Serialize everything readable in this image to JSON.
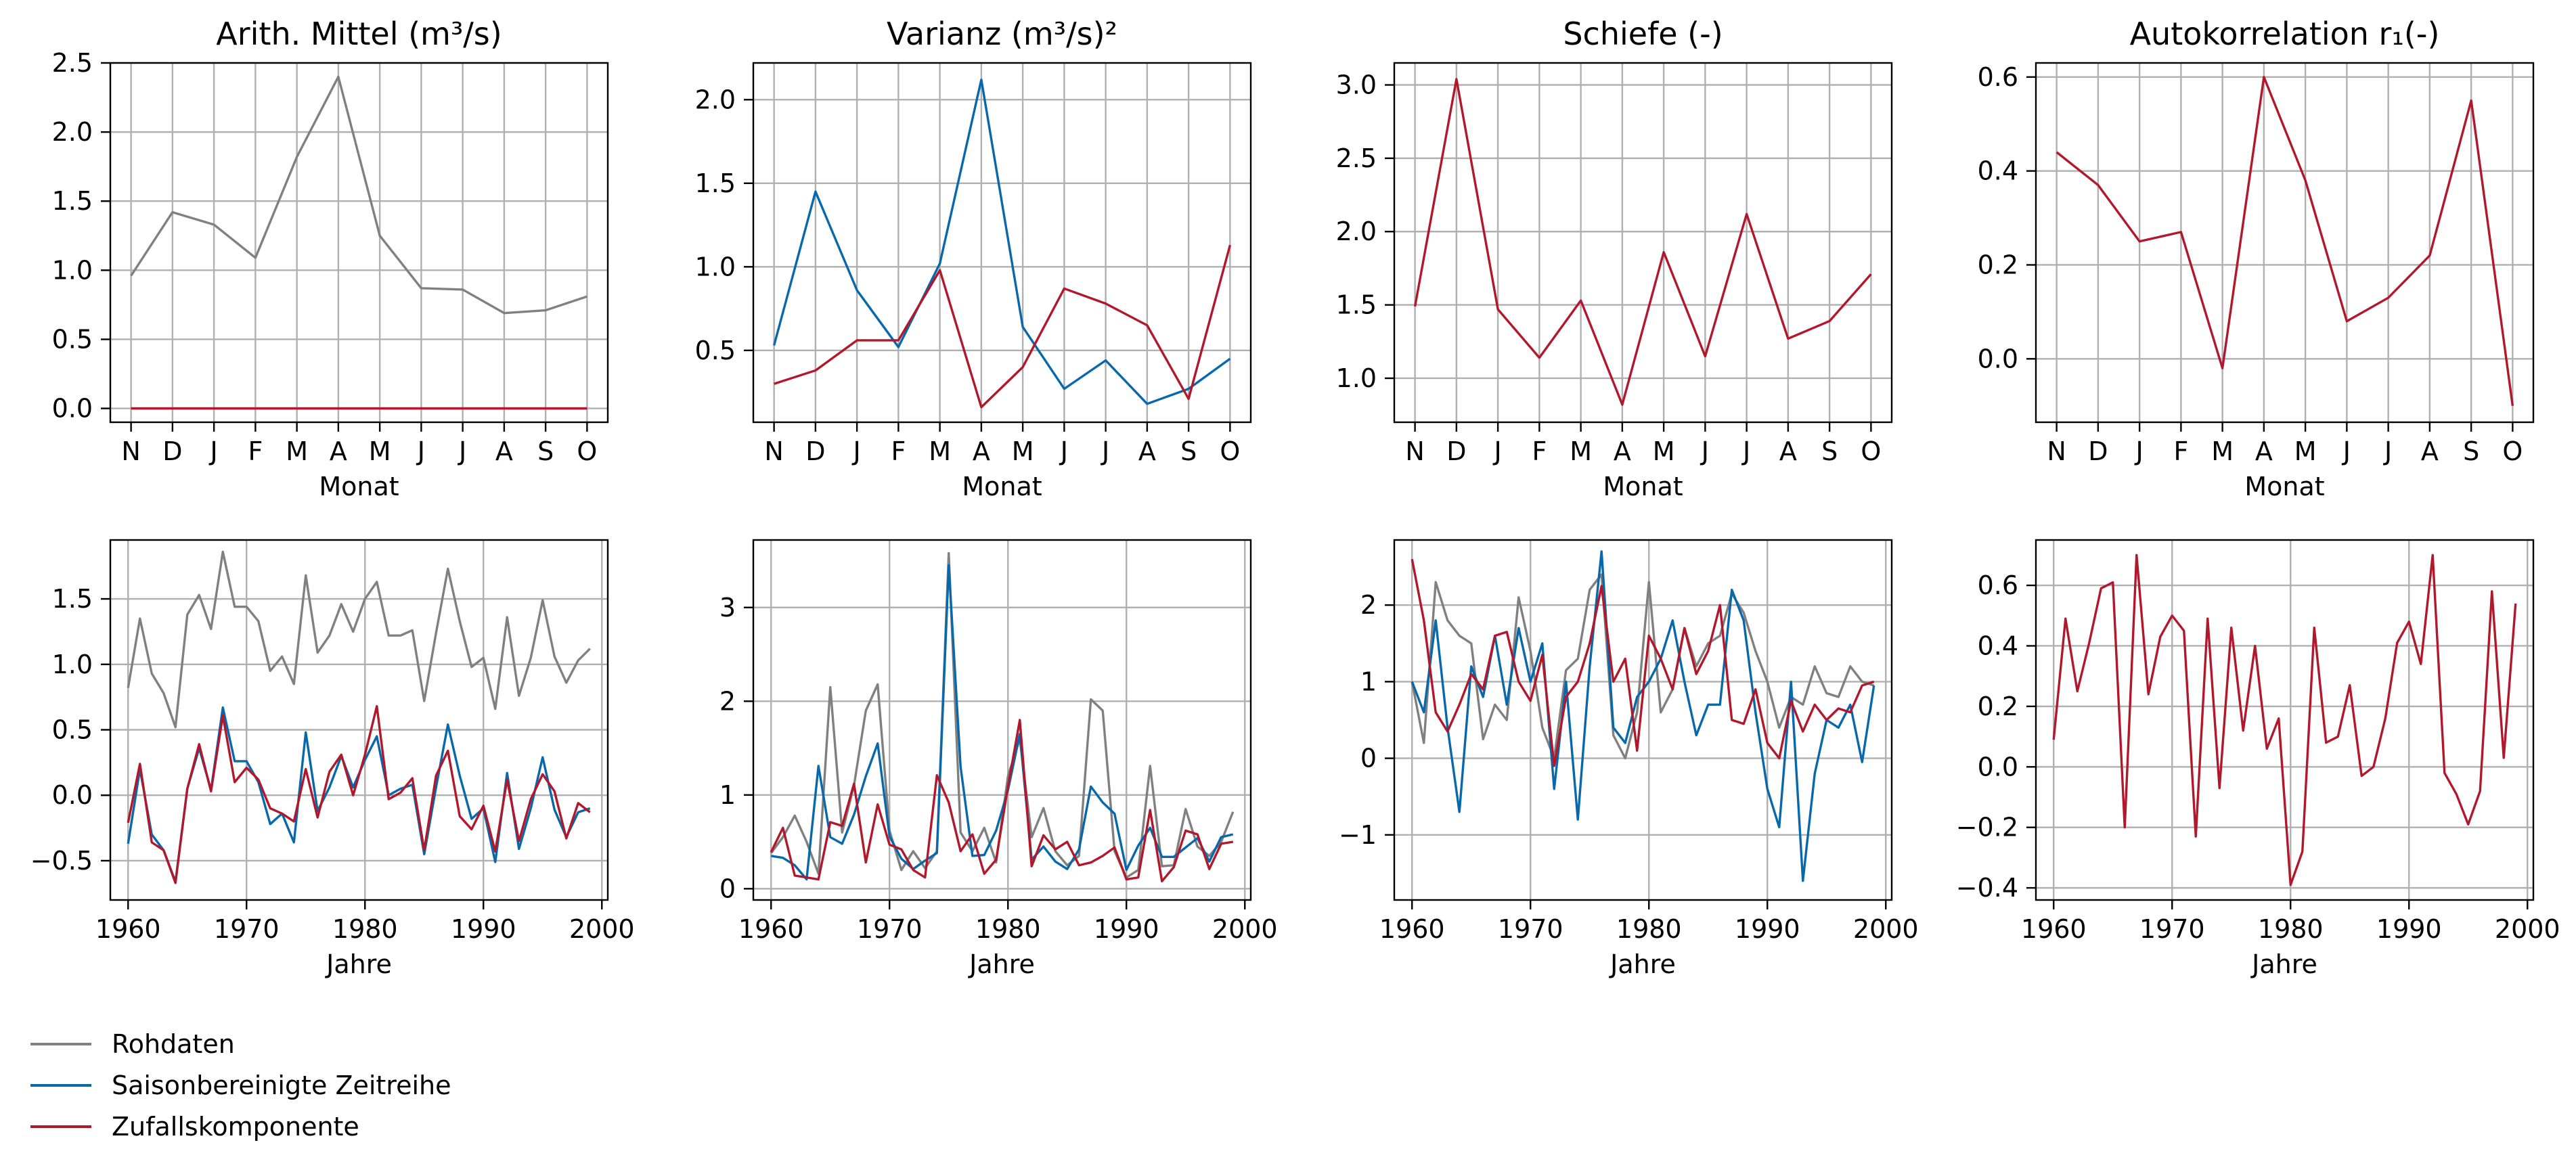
{
  "chart_data": [
    {
      "type": "line",
      "title": "Arith. Mittel (m³/s)",
      "xlabel": "Monat",
      "ylabel": "",
      "categories": [
        "N",
        "D",
        "J",
        "F",
        "M",
        "A",
        "M",
        "J",
        "J",
        "A",
        "S",
        "O"
      ],
      "ylim": [
        -0.1,
        2.5
      ],
      "yticks": [
        0.0,
        0.5,
        1.0,
        1.5,
        2.0,
        2.5
      ],
      "yticklabels": [
        "0.0",
        "0.5",
        "1.0",
        "1.5",
        "2.0",
        "2.5"
      ],
      "grid": true,
      "series": [
        {
          "name": "Rohdaten",
          "color": "#808080",
          "values": [
            0.96,
            1.42,
            1.33,
            1.09,
            1.82,
            2.4,
            1.25,
            0.87,
            0.86,
            0.69,
            0.71,
            0.81
          ]
        },
        {
          "name": "Saisonbereinigte Zeitreihe",
          "color": "#0868ac",
          "values": [
            0,
            0,
            0,
            0,
            0,
            0,
            0,
            0,
            0,
            0,
            0,
            0
          ]
        },
        {
          "name": "Zufallskomponente",
          "color": "#b2182b",
          "values": [
            0,
            0,
            0,
            0,
            0,
            0,
            0,
            0,
            0,
            0,
            0,
            0
          ]
        }
      ]
    },
    {
      "type": "line",
      "title": "Varianz (m³/s)²",
      "xlabel": "Monat",
      "ylabel": "",
      "categories": [
        "N",
        "D",
        "J",
        "F",
        "M",
        "A",
        "M",
        "J",
        "J",
        "A",
        "S",
        "O"
      ],
      "ylim": [
        0.07,
        2.22
      ],
      "yticks": [
        0.5,
        1.0,
        1.5,
        2.0
      ],
      "yticklabels": [
        "0.5",
        "1.0",
        "1.5",
        "2.0"
      ],
      "grid": true,
      "series": [
        {
          "name": "Saisonbereinigte Zeitreihe",
          "color": "#0868ac",
          "values": [
            0.53,
            1.45,
            0.86,
            0.52,
            1.02,
            2.12,
            0.64,
            0.27,
            0.44,
            0.18,
            0.27,
            0.45
          ]
        },
        {
          "name": "Zufallskomponente",
          "color": "#b2182b",
          "values": [
            0.3,
            0.38,
            0.56,
            0.56,
            0.98,
            0.16,
            0.4,
            0.87,
            0.78,
            0.65,
            0.21,
            1.13
          ]
        }
      ]
    },
    {
      "type": "line",
      "title": "Schiefe (-)",
      "xlabel": "Monat",
      "ylabel": "",
      "categories": [
        "N",
        "D",
        "J",
        "F",
        "M",
        "A",
        "M",
        "J",
        "J",
        "A",
        "S",
        "O"
      ],
      "ylim": [
        0.7,
        3.15
      ],
      "yticks": [
        1.0,
        1.5,
        2.0,
        2.5,
        3.0
      ],
      "yticklabels": [
        "1.0",
        "1.5",
        "2.0",
        "2.5",
        "3.0"
      ],
      "grid": true,
      "series": [
        {
          "name": "Zufallskomponente",
          "color": "#b2182b",
          "values": [
            1.49,
            3.04,
            1.47,
            1.14,
            1.53,
            0.82,
            1.86,
            1.15,
            2.12,
            1.27,
            1.39,
            1.71
          ]
        }
      ]
    },
    {
      "type": "line",
      "title": "Autokorrelation r₁(-)",
      "xlabel": "Monat",
      "ylabel": "",
      "categories": [
        "N",
        "D",
        "J",
        "F",
        "M",
        "A",
        "M",
        "J",
        "J",
        "A",
        "S",
        "O"
      ],
      "ylim": [
        -0.135,
        0.63
      ],
      "yticks": [
        0.0,
        0.2,
        0.4,
        0.6
      ],
      "yticklabels": [
        "0.0",
        "0.2",
        "0.4",
        "0.6"
      ],
      "grid": true,
      "series": [
        {
          "name": "Zufallskomponente",
          "color": "#b2182b",
          "values": [
            0.44,
            0.37,
            0.25,
            0.27,
            -0.02,
            0.6,
            0.38,
            0.08,
            0.13,
            0.22,
            0.55,
            -0.1
          ]
        }
      ]
    },
    {
      "type": "line",
      "title": "",
      "xlabel": "Jahre",
      "ylabel": "",
      "x": [
        1960,
        1961,
        1962,
        1963,
        1964,
        1965,
        1966,
        1967,
        1968,
        1969,
        1970,
        1971,
        1972,
        1973,
        1974,
        1975,
        1976,
        1977,
        1978,
        1979,
        1980,
        1981,
        1982,
        1983,
        1984,
        1985,
        1986,
        1987,
        1988,
        1989,
        1990,
        1991,
        1992,
        1993,
        1994,
        1995,
        1996,
        1997,
        1998,
        1999
      ],
      "xlim": [
        1958.5,
        2000.5
      ],
      "xticks": [
        1960,
        1970,
        1980,
        1990,
        2000
      ],
      "ylim": [
        -0.8,
        1.95
      ],
      "yticks": [
        -0.5,
        0.0,
        0.5,
        1.0,
        1.5
      ],
      "yticklabels": [
        "−0.5",
        "0.0",
        "0.5",
        "1.0",
        "1.5"
      ],
      "grid": true,
      "series": [
        {
          "name": "Rohdaten",
          "color": "#808080",
          "values": [
            0.82,
            1.35,
            0.93,
            0.78,
            0.52,
            1.38,
            1.53,
            1.27,
            1.86,
            1.44,
            1.44,
            1.33,
            0.95,
            1.06,
            0.85,
            1.68,
            1.09,
            1.22,
            1.46,
            1.25,
            1.5,
            1.63,
            1.22,
            1.22,
            1.26,
            0.72,
            1.24,
            1.73,
            1.33,
            0.98,
            1.05,
            0.66,
            1.36,
            0.76,
            1.05,
            1.49,
            1.06,
            0.86,
            1.03,
            1.12
          ]
        },
        {
          "name": "Saisonbereinigte Zeitreihe",
          "color": "#0868ac",
          "values": [
            -0.37,
            0.2,
            -0.3,
            -0.42,
            -0.66,
            0.05,
            0.36,
            0.04,
            0.67,
            0.26,
            0.26,
            0.1,
            -0.22,
            -0.14,
            -0.36,
            0.48,
            -0.12,
            0.06,
            0.3,
            0.06,
            0.27,
            0.45,
            0.0,
            0.05,
            0.08,
            -0.45,
            0.06,
            0.54,
            0.15,
            -0.18,
            -0.1,
            -0.51,
            0.17,
            -0.41,
            -0.1,
            0.29,
            -0.11,
            -0.32,
            -0.13,
            -0.1
          ]
        },
        {
          "name": "Zufallskomponente",
          "color": "#b2182b",
          "values": [
            -0.21,
            0.24,
            -0.36,
            -0.42,
            -0.67,
            0.05,
            0.39,
            0.03,
            0.61,
            0.1,
            0.21,
            0.12,
            -0.1,
            -0.14,
            -0.2,
            0.2,
            -0.17,
            0.18,
            0.31,
            0.0,
            0.31,
            0.68,
            -0.03,
            0.02,
            0.13,
            -0.42,
            0.15,
            0.34,
            -0.16,
            -0.26,
            -0.08,
            -0.43,
            0.12,
            -0.35,
            -0.03,
            0.16,
            0.03,
            -0.33,
            -0.06,
            -0.13
          ]
        }
      ]
    },
    {
      "type": "line",
      "title": "",
      "xlabel": "Jahre",
      "ylabel": "",
      "x": [
        1960,
        1961,
        1962,
        1963,
        1964,
        1965,
        1966,
        1967,
        1968,
        1969,
        1970,
        1971,
        1972,
        1973,
        1974,
        1975,
        1976,
        1977,
        1978,
        1979,
        1980,
        1981,
        1982,
        1983,
        1984,
        1985,
        1986,
        1987,
        1988,
        1989,
        1990,
        1991,
        1992,
        1993,
        1994,
        1995,
        1996,
        1997,
        1998,
        1999
      ],
      "xlim": [
        1958.5,
        2000.5
      ],
      "xticks": [
        1960,
        1970,
        1980,
        1990,
        2000
      ],
      "ylim": [
        -0.12,
        3.72
      ],
      "yticks": [
        0,
        1,
        2,
        3
      ],
      "yticklabels": [
        "0",
        "1",
        "2",
        "3"
      ],
      "grid": true,
      "series": [
        {
          "name": "Rohdaten",
          "color": "#808080",
          "values": [
            0.38,
            0.55,
            0.78,
            0.5,
            0.16,
            2.15,
            0.6,
            1.1,
            1.9,
            2.18,
            0.62,
            0.2,
            0.4,
            0.22,
            0.4,
            3.58,
            0.6,
            0.4,
            0.65,
            0.28,
            1.2,
            1.6,
            0.55,
            0.86,
            0.4,
            0.25,
            0.35,
            2.02,
            1.9,
            0.4,
            0.12,
            0.2,
            1.31,
            0.24,
            0.25,
            0.85,
            0.45,
            0.35,
            0.5,
            0.82
          ]
        },
        {
          "name": "Saisonbereinigte Zeitreihe",
          "color": "#0868ac",
          "values": [
            0.35,
            0.33,
            0.25,
            0.1,
            1.31,
            0.55,
            0.48,
            0.79,
            1.2,
            1.55,
            0.56,
            0.32,
            0.21,
            0.3,
            0.38,
            3.45,
            1.3,
            0.35,
            0.36,
            0.62,
            1.05,
            1.65,
            0.31,
            0.45,
            0.29,
            0.21,
            0.42,
            1.09,
            0.92,
            0.8,
            0.2,
            0.46,
            0.65,
            0.34,
            0.34,
            0.44,
            0.54,
            0.29,
            0.55,
            0.58
          ]
        },
        {
          "name": "Zufallskomponente",
          "color": "#b2182b",
          "values": [
            0.39,
            0.65,
            0.14,
            0.12,
            0.1,
            0.71,
            0.67,
            1.12,
            0.28,
            0.9,
            0.47,
            0.42,
            0.2,
            0.12,
            1.21,
            0.92,
            0.4,
            0.58,
            0.16,
            0.31,
            1.09,
            1.8,
            0.24,
            0.57,
            0.42,
            0.5,
            0.25,
            0.28,
            0.35,
            0.44,
            0.1,
            0.12,
            0.84,
            0.08,
            0.23,
            0.62,
            0.58,
            0.21,
            0.48,
            0.5
          ]
        }
      ]
    },
    {
      "type": "line",
      "title": "",
      "xlabel": "Jahre",
      "ylabel": "",
      "x": [
        1960,
        1961,
        1962,
        1963,
        1964,
        1965,
        1966,
        1967,
        1968,
        1969,
        1970,
        1971,
        1972,
        1973,
        1974,
        1975,
        1976,
        1977,
        1978,
        1979,
        1980,
        1981,
        1982,
        1983,
        1984,
        1985,
        1986,
        1987,
        1988,
        1989,
        1990,
        1991,
        1992,
        1993,
        1994,
        1995,
        1996,
        1997,
        1998,
        1999
      ],
      "xlim": [
        1958.5,
        2000.5
      ],
      "xticks": [
        1960,
        1970,
        1980,
        1990,
        2000
      ],
      "ylim": [
        -1.85,
        2.85
      ],
      "yticks": [
        -1,
        0,
        1,
        2
      ],
      "yticklabels": [
        "−1",
        "0",
        "1",
        "2"
      ],
      "grid": true,
      "series": [
        {
          "name": "Rohdaten",
          "color": "#808080",
          "values": [
            1.0,
            0.2,
            2.3,
            1.8,
            1.6,
            1.5,
            0.25,
            0.7,
            0.5,
            2.1,
            1.4,
            0.4,
            0.0,
            1.15,
            1.3,
            2.2,
            2.4,
            0.3,
            0.0,
            0.6,
            2.3,
            0.6,
            0.9,
            1.7,
            1.2,
            1.5,
            1.6,
            2.15,
            1.9,
            1.4,
            1.0,
            0.4,
            0.8,
            0.7,
            1.2,
            0.85,
            0.8,
            1.2,
            1.0,
            0.95
          ]
        },
        {
          "name": "Saisonbereinigte Zeitreihe",
          "color": "#0868ac",
          "values": [
            1.0,
            0.6,
            1.8,
            0.4,
            -0.7,
            1.2,
            0.8,
            1.6,
            0.7,
            1.7,
            1.0,
            1.5,
            -0.4,
            1.0,
            -0.8,
            1.2,
            2.7,
            0.4,
            0.2,
            0.8,
            1.0,
            1.3,
            1.8,
            1.0,
            0.3,
            0.7,
            0.7,
            2.2,
            1.8,
            0.6,
            -0.4,
            -0.9,
            1.0,
            -1.6,
            -0.2,
            0.5,
            0.4,
            0.7,
            -0.05,
            0.95
          ]
        },
        {
          "name": "Zufallskomponente",
          "color": "#b2182b",
          "values": [
            2.6,
            1.8,
            0.6,
            0.35,
            0.7,
            1.1,
            0.9,
            1.6,
            1.65,
            1.0,
            0.75,
            1.35,
            -0.1,
            0.8,
            1.0,
            1.5,
            2.25,
            1.0,
            1.3,
            0.1,
            1.6,
            1.3,
            0.9,
            1.7,
            1.1,
            1.4,
            2.0,
            0.5,
            0.45,
            0.9,
            0.2,
            0.0,
            0.75,
            0.35,
            0.7,
            0.5,
            0.65,
            0.6,
            0.95,
            1.0
          ]
        }
      ]
    },
    {
      "type": "line",
      "title": "",
      "xlabel": "Jahre",
      "ylabel": "",
      "x": [
        1960,
        1961,
        1962,
        1963,
        1964,
        1965,
        1966,
        1967,
        1968,
        1969,
        1970,
        1971,
        1972,
        1973,
        1974,
        1975,
        1976,
        1977,
        1978,
        1979,
        1980,
        1981,
        1982,
        1983,
        1984,
        1985,
        1986,
        1987,
        1988,
        1989,
        1990,
        1991,
        1992,
        1993,
        1994,
        1995,
        1996,
        1997,
        1998,
        1999
      ],
      "xlim": [
        1958.5,
        2000.5
      ],
      "xticks": [
        1960,
        1970,
        1980,
        1990,
        2000
      ],
      "ylim": [
        -0.44,
        0.75
      ],
      "yticks": [
        -0.4,
        -0.2,
        0.0,
        0.2,
        0.4,
        0.6
      ],
      "yticklabels": [
        "−0.4",
        "−0.2",
        "0.0",
        "0.2",
        "0.4",
        "0.6"
      ],
      "grid": true,
      "series": [
        {
          "name": "Zufallskomponente",
          "color": "#b2182b",
          "values": [
            0.09,
            0.49,
            0.25,
            0.41,
            0.59,
            0.61,
            -0.2,
            0.7,
            0.24,
            0.43,
            0.5,
            0.45,
            -0.23,
            0.49,
            -0.07,
            0.46,
            0.12,
            0.4,
            0.06,
            0.16,
            -0.39,
            -0.28,
            0.46,
            0.08,
            0.1,
            0.27,
            -0.03,
            0.0,
            0.16,
            0.41,
            0.48,
            0.34,
            0.7,
            -0.02,
            -0.09,
            -0.19,
            -0.08,
            0.58,
            0.03,
            0.54
          ]
        }
      ]
    }
  ],
  "legend": {
    "items": [
      {
        "label": "Rohdaten",
        "color": "#808080"
      },
      {
        "label": "Saisonbereinigte Zeitreihe",
        "color": "#0868ac"
      },
      {
        "label": "Zufallskomponente",
        "color": "#b2182b"
      }
    ]
  }
}
